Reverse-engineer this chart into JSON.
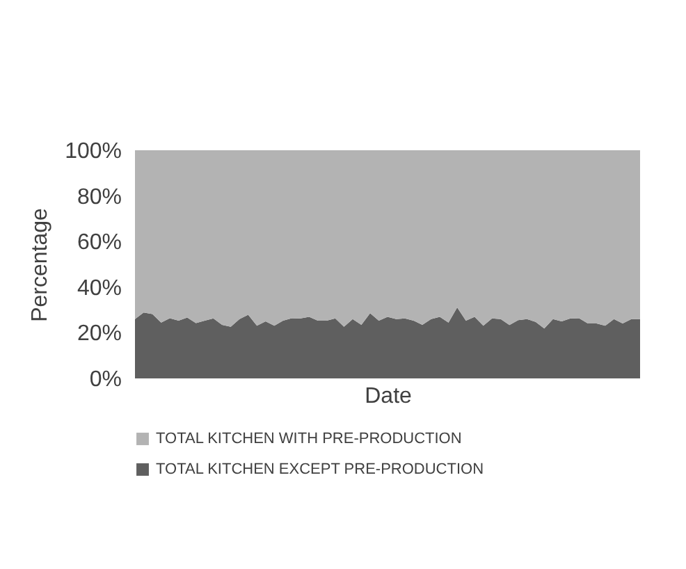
{
  "chart_data": {
    "type": "area",
    "stacked": true,
    "xlabel": "Date",
    "ylabel": "Percentage",
    "categories": [
      null,
      null,
      null,
      null,
      null,
      null,
      null,
      null,
      null,
      null,
      null,
      null,
      null,
      null,
      null,
      null,
      null,
      null,
      null,
      null,
      null,
      null,
      null,
      null,
      null,
      null,
      null,
      null,
      null,
      null,
      null,
      null,
      null,
      null,
      null,
      null,
      null,
      null,
      null,
      null,
      null,
      null,
      null,
      null,
      null,
      null,
      null,
      null,
      null,
      null,
      null,
      null,
      null,
      null,
      null,
      null,
      null,
      null,
      null
    ],
    "series": [
      {
        "name": "TOTAL KITCHEN EXCEPT PRE-PRODUCTION",
        "color": "#5f5f5f",
        "values": [
          26,
          28.9,
          28.2,
          24.5,
          26.4,
          25.3,
          26.7,
          24.2,
          25.3,
          26.3,
          23.5,
          22.6,
          26,
          27.9,
          23.1,
          25,
          23.1,
          25.3,
          26.4,
          26.3,
          27,
          25.3,
          25.3,
          26.3,
          22.6,
          26,
          23.5,
          28.6,
          25.3,
          27,
          26,
          26.3,
          25.3,
          23.5,
          26,
          27,
          24.5,
          31.1,
          25.3,
          27,
          23.1,
          26.3,
          26,
          23.4,
          25.5,
          26,
          24.8,
          21.9,
          26,
          25,
          26.3,
          26.4,
          24.1,
          24.1,
          23.1,
          26,
          24.1,
          26,
          26
        ]
      },
      {
        "name": "TOTAL KITCHEN WITH PRE-PRODUCTION",
        "color": "#b3b3b3",
        "values": [
          74,
          71.1,
          71.8,
          75.5,
          73.6,
          74.7,
          73.3,
          75.8,
          74.7,
          73.7,
          76.5,
          77.4,
          74,
          72.1,
          76.9,
          75,
          76.9,
          74.7,
          73.6,
          73.7,
          73,
          74.7,
          74.7,
          73.7,
          77.4,
          74,
          76.5,
          71.4,
          74.7,
          73,
          74,
          73.7,
          74.7,
          76.5,
          74,
          73,
          75.5,
          68.9,
          74.7,
          73,
          76.9,
          73.7,
          74,
          76.6,
          74.5,
          74,
          75.2,
          78.1,
          74,
          75,
          73.7,
          73.6,
          75.9,
          75.9,
          76.9,
          74,
          75.9,
          74,
          74
        ]
      }
    ],
    "ylim": [
      0,
      100
    ],
    "yticks": [
      {
        "value": 0,
        "label": "0%"
      },
      {
        "value": 20,
        "label": "20%"
      },
      {
        "value": 40,
        "label": "40%"
      },
      {
        "value": 60,
        "label": "60%"
      },
      {
        "value": 80,
        "label": "80%"
      },
      {
        "value": 100,
        "label": "100%"
      }
    ],
    "grid": false,
    "legend": "bottom"
  }
}
